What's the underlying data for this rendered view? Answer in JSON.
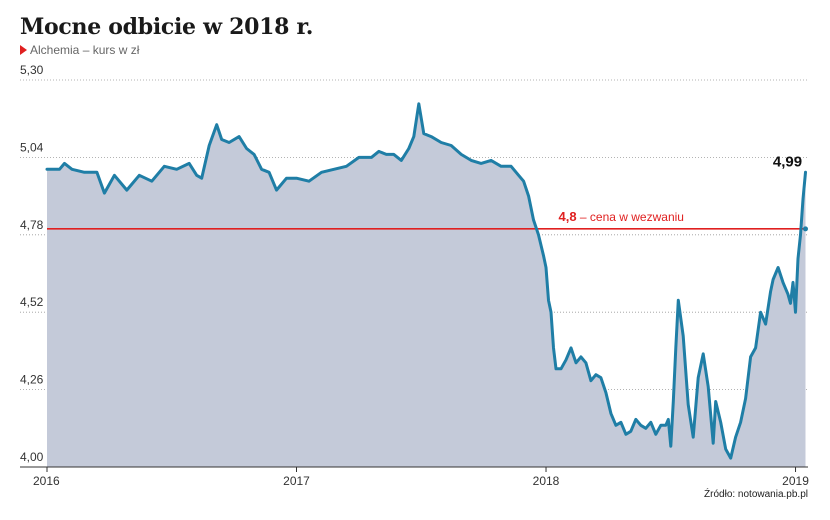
{
  "chart_data": {
    "type": "area",
    "title": "Mocne odbicie w 2018 r.",
    "subtitle": "Alchemia – kurs w zł",
    "source": "Źródło: notowania.pb.pl",
    "ylim": [
      4.0,
      5.3
    ],
    "y_ticks": [
      "5,30",
      "5,04",
      "4,78",
      "4,52",
      "4,26",
      "4,00"
    ],
    "y_tick_values": [
      5.3,
      5.04,
      4.78,
      4.52,
      4.26,
      4.0
    ],
    "x_ticks": [
      "2016",
      "2017",
      "2018",
      "2019"
    ],
    "x_tick_values": [
      2016,
      2017,
      2018,
      2019
    ],
    "xlim": [
      2016,
      2019.05
    ],
    "grid": "horizontal dotted",
    "reference_line": {
      "value": 4.8,
      "value_label": "4,8",
      "label": " – cena w wezwaniu",
      "color": "#e02020"
    },
    "last_value_label": "4,99",
    "series": [
      {
        "color": "#1f7ea6",
        "fill": "#c4cad9",
        "points": [
          [
            2016.0,
            5.0
          ],
          [
            2016.05,
            5.0
          ],
          [
            2016.07,
            5.02
          ],
          [
            2016.1,
            5.0
          ],
          [
            2016.15,
            4.99
          ],
          [
            2016.2,
            4.99
          ],
          [
            2016.23,
            4.92
          ],
          [
            2016.27,
            4.98
          ],
          [
            2016.32,
            4.93
          ],
          [
            2016.37,
            4.98
          ],
          [
            2016.42,
            4.96
          ],
          [
            2016.47,
            5.01
          ],
          [
            2016.52,
            5.0
          ],
          [
            2016.57,
            5.02
          ],
          [
            2016.6,
            4.98
          ],
          [
            2016.62,
            4.97
          ],
          [
            2016.65,
            5.08
          ],
          [
            2016.68,
            5.15
          ],
          [
            2016.7,
            5.1
          ],
          [
            2016.73,
            5.09
          ],
          [
            2016.77,
            5.11
          ],
          [
            2016.8,
            5.07
          ],
          [
            2016.83,
            5.05
          ],
          [
            2016.86,
            5.0
          ],
          [
            2016.89,
            4.99
          ],
          [
            2016.92,
            4.93
          ],
          [
            2016.96,
            4.97
          ],
          [
            2017.0,
            4.97
          ],
          [
            2017.05,
            4.96
          ],
          [
            2017.1,
            4.99
          ],
          [
            2017.15,
            5.0
          ],
          [
            2017.2,
            5.01
          ],
          [
            2017.25,
            5.04
          ],
          [
            2017.3,
            5.04
          ],
          [
            2017.33,
            5.06
          ],
          [
            2017.36,
            5.05
          ],
          [
            2017.39,
            5.05
          ],
          [
            2017.42,
            5.03
          ],
          [
            2017.45,
            5.07
          ],
          [
            2017.47,
            5.11
          ],
          [
            2017.49,
            5.22
          ],
          [
            2017.51,
            5.12
          ],
          [
            2017.54,
            5.11
          ],
          [
            2017.58,
            5.09
          ],
          [
            2017.62,
            5.08
          ],
          [
            2017.66,
            5.05
          ],
          [
            2017.7,
            5.03
          ],
          [
            2017.74,
            5.02
          ],
          [
            2017.78,
            5.03
          ],
          [
            2017.82,
            5.01
          ],
          [
            2017.86,
            5.01
          ],
          [
            2017.89,
            4.98
          ],
          [
            2017.91,
            4.96
          ],
          [
            2017.93,
            4.91
          ],
          [
            2017.95,
            4.83
          ],
          [
            2017.97,
            4.78
          ],
          [
            2017.99,
            4.71
          ],
          [
            2018.0,
            4.67
          ],
          [
            2018.01,
            4.56
          ],
          [
            2018.02,
            4.52
          ],
          [
            2018.03,
            4.4
          ],
          [
            2018.04,
            4.33
          ],
          [
            2018.06,
            4.33
          ],
          [
            2018.08,
            4.36
          ],
          [
            2018.1,
            4.4
          ],
          [
            2018.12,
            4.35
          ],
          [
            2018.14,
            4.37
          ],
          [
            2018.16,
            4.35
          ],
          [
            2018.18,
            4.29
          ],
          [
            2018.2,
            4.31
          ],
          [
            2018.22,
            4.3
          ],
          [
            2018.24,
            4.25
          ],
          [
            2018.26,
            4.18
          ],
          [
            2018.28,
            4.14
          ],
          [
            2018.3,
            4.15
          ],
          [
            2018.32,
            4.11
          ],
          [
            2018.34,
            4.12
          ],
          [
            2018.36,
            4.16
          ],
          [
            2018.38,
            4.14
          ],
          [
            2018.4,
            4.13
          ],
          [
            2018.42,
            4.15
          ],
          [
            2018.44,
            4.11
          ],
          [
            2018.46,
            4.14
          ],
          [
            2018.48,
            4.14
          ],
          [
            2018.49,
            4.16
          ],
          [
            2018.5,
            4.07
          ],
          [
            2018.51,
            4.22
          ],
          [
            2018.52,
            4.4
          ],
          [
            2018.53,
            4.56
          ],
          [
            2018.55,
            4.44
          ],
          [
            2018.57,
            4.21
          ],
          [
            2018.59,
            4.1
          ],
          [
            2018.61,
            4.3
          ],
          [
            2018.63,
            4.38
          ],
          [
            2018.65,
            4.27
          ],
          [
            2018.67,
            4.08
          ],
          [
            2018.68,
            4.22
          ],
          [
            2018.7,
            4.15
          ],
          [
            2018.72,
            4.06
          ],
          [
            2018.74,
            4.03
          ],
          [
            2018.76,
            4.1
          ],
          [
            2018.78,
            4.15
          ],
          [
            2018.8,
            4.23
          ],
          [
            2018.82,
            4.37
          ],
          [
            2018.84,
            4.4
          ],
          [
            2018.86,
            4.52
          ],
          [
            2018.88,
            4.48
          ],
          [
            2018.9,
            4.59
          ],
          [
            2018.91,
            4.63
          ],
          [
            2018.93,
            4.67
          ],
          [
            2018.95,
            4.62
          ],
          [
            2018.97,
            4.58
          ],
          [
            2018.98,
            4.55
          ],
          [
            2018.99,
            4.62
          ],
          [
            2019.0,
            4.52
          ],
          [
            2019.01,
            4.7
          ],
          [
            2019.02,
            4.78
          ],
          [
            2019.03,
            4.9
          ],
          [
            2019.04,
            4.99
          ]
        ]
      }
    ]
  }
}
